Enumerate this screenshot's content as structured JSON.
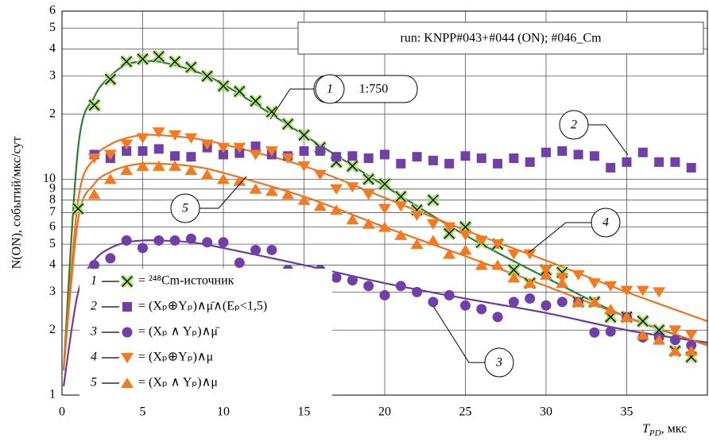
{
  "chart_data": {
    "type": "scatter",
    "info": "run: KNPP#043+#044 (ON); #046_Cm",
    "y_label": "N(ON), событий/мкс/сут",
    "x_label": {
      "symbol": "T",
      "subscript": "PD",
      "unit": ", мкс"
    },
    "scale_note": "1:750",
    "log_y": true,
    "grid": true,
    "xlim": [
      0,
      40
    ],
    "ylim": [
      1,
      60
    ],
    "xticks": [
      0,
      5,
      10,
      15,
      20,
      25,
      30,
      35
    ],
    "yticks": [
      1,
      2,
      3,
      4,
      5,
      6,
      7,
      8,
      9,
      10,
      {
        "value": 20,
        "label": "2"
      },
      {
        "value": 30,
        "label": "3"
      },
      {
        "value": 40,
        "label": "4"
      },
      {
        "value": 50,
        "label": "5"
      },
      {
        "value": 60,
        "label": "6"
      }
    ],
    "x": [
      1,
      2,
      3,
      4,
      5,
      6,
      7,
      8,
      9,
      10,
      11,
      12,
      13,
      14,
      15,
      16,
      17,
      18,
      19,
      20,
      21,
      22,
      23,
      24,
      25,
      26,
      27,
      28,
      29,
      30,
      31,
      32,
      33,
      34,
      35,
      36,
      37,
      38,
      39
    ],
    "series": [
      {
        "id": "1",
        "name": "= ²⁴⁸Cm-источник",
        "marker": "x",
        "color": "#9fdc6a",
        "values": [
          7.3,
          22,
          29,
          35,
          36,
          37,
          35,
          33,
          30,
          27,
          25.5,
          23,
          20.5,
          18,
          16,
          14,
          12,
          11.5,
          10,
          9.5,
          8.3,
          7.2,
          8,
          5.6,
          6,
          5.1,
          5,
          3.8,
          3.3,
          3.8,
          3.7,
          2.7,
          2.7,
          2.3,
          2.3,
          2.2,
          2,
          1.6,
          1.5
        ]
      },
      {
        "id": "2",
        "name": "= (Xₚ⊕Yₚ)∧μ̄∧(Eₚ<1,5)",
        "marker": "square",
        "color": "#7040a8",
        "values": [
          null,
          13,
          12.5,
          13.5,
          13.5,
          13.8,
          12.8,
          12.7,
          14,
          13,
          13.2,
          14.2,
          13,
          12.8,
          13.5,
          13.5,
          12.7,
          12.8,
          12.5,
          13,
          11.8,
          12.7,
          12.2,
          11.8,
          12.8,
          12.5,
          11.8,
          12.5,
          12,
          13.3,
          13.5,
          13,
          12.8,
          11.3,
          12,
          13.3,
          12,
          12,
          11.3
        ]
      },
      {
        "id": "3",
        "name": "= (Xₚ ∧ Yₚ)∧μ̄",
        "marker": "circle",
        "color": "#7040a8",
        "values": [
          null,
          4,
          4.3,
          5.2,
          4.8,
          5.2,
          5.2,
          5.3,
          5.1,
          5.1,
          4.1,
          4.7,
          4.7,
          3.8,
          3.6,
          3.8,
          3.5,
          3.4,
          3.2,
          2.9,
          3.2,
          3,
          2.7,
          2.9,
          2.6,
          2.5,
          2.3,
          2.7,
          2.8,
          2.6,
          2.7,
          2.7,
          1.95,
          1.97,
          2.3,
          1.85,
          1.85,
          1.8,
          1.7
        ]
      },
      {
        "id": "4",
        "name": "= (Xₚ⊕Yₚ)∧μ",
        "marker": "tri-down",
        "color": "#f47a20",
        "values": [
          null,
          12.5,
          13,
          14.5,
          15.5,
          16.5,
          16,
          15.5,
          14.5,
          14,
          14,
          13,
          13.5,
          12.5,
          11.5,
          10.5,
          9,
          9.2,
          8.5,
          7.3,
          7.5,
          6.8,
          6.2,
          6,
          5.5,
          5.2,
          5,
          4.5,
          4.5,
          3.8,
          3.5,
          3.6,
          3.3,
          3.2,
          3.05,
          3.05,
          3,
          2,
          1.9
        ]
      },
      {
        "id": "5",
        "name": "= (Xₚ ∧ Yₚ)∧μ",
        "marker": "tri-up",
        "color": "#f47a20",
        "values": [
          null,
          8.5,
          10,
          11,
          11.5,
          11.5,
          11.5,
          11,
          10.5,
          10,
          9.8,
          9,
          8.8,
          8.5,
          8,
          7.5,
          7.2,
          6.5,
          6.2,
          6,
          5.5,
          5,
          5.2,
          4.5,
          4.7,
          4,
          4,
          3.5,
          3.3,
          3.6,
          3.3,
          2.7,
          2.7,
          2.5,
          2.3,
          1.9,
          1.8,
          1.6,
          1.6
        ]
      }
    ],
    "fit_x": [
      0.1,
      1,
      2,
      3,
      4,
      5,
      6,
      8,
      10,
      15,
      20,
      25,
      30,
      35,
      40
    ],
    "fits": [
      {
        "color": "#2e7d32",
        "values": [
          1.3,
          14,
          24,
          30,
          34,
          35,
          35,
          32,
          27.5,
          16,
          9.3,
          5.5,
          3.5,
          2.3,
          1.7
        ]
      },
      {
        "color": "#6a3d9a",
        "values": [
          1.1,
          3,
          4.2,
          4.8,
          5.1,
          5.2,
          5.2,
          5.1,
          4.8,
          4,
          3.3,
          2.8,
          2.4,
          2,
          1.75
        ]
      },
      {
        "color": "#f07020",
        "values": [
          1.3,
          8,
          12.5,
          14.5,
          15.5,
          16,
          16,
          15.5,
          14.5,
          11.5,
          8.2,
          5.8,
          4.2,
          3,
          2.2
        ]
      },
      {
        "color": "#f07020",
        "values": [
          1.3,
          6.5,
          9.5,
          10.8,
          11.5,
          11.8,
          11.8,
          11.5,
          10.7,
          8.3,
          6,
          4.4,
          3.2,
          2.3,
          1.7
        ]
      }
    ],
    "callouts": [
      "1",
      "2",
      "3",
      "4",
      "5"
    ]
  }
}
